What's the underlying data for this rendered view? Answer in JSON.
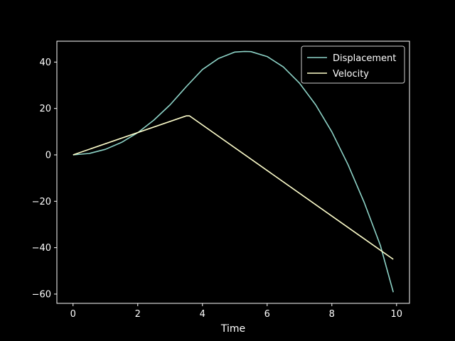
{
  "chart_data": {
    "type": "line",
    "title": "",
    "xlabel": "Time",
    "ylabel": "",
    "xlim": [
      -0.5,
      10.4
    ],
    "ylim": [
      -64,
      49
    ],
    "xticks": [
      0,
      2,
      4,
      6,
      8,
      10
    ],
    "yticks": [
      -60,
      -40,
      -20,
      0,
      20,
      40
    ],
    "xtick_labels": [
      "0",
      "2",
      "4",
      "6",
      "8",
      "10"
    ],
    "ytick_labels": [
      "−60",
      "−40",
      "−20",
      "0",
      "20",
      "40"
    ],
    "grid": false,
    "legend": "top-right",
    "background": "#000000",
    "foreground": "#ffffff",
    "series": [
      {
        "name": "Displacement",
        "color": "#8dd3c7",
        "x": [
          0,
          0.5,
          1,
          1.5,
          2,
          2.5,
          3,
          3.5,
          4,
          4.5,
          5,
          5.3,
          5.5,
          6,
          6.5,
          7,
          7.5,
          8,
          8.5,
          9,
          9.5,
          9.9
        ],
        "y": [
          0,
          0.6,
          2.4,
          5.4,
          9.6,
          15.0,
          21.6,
          29.4,
          36.8,
          41.6,
          44.3,
          44.6,
          44.5,
          42.4,
          37.9,
          30.9,
          21.6,
          9.9,
          -4.2,
          -20.5,
          -39.0,
          -59.2
        ]
      },
      {
        "name": "Velocity",
        "color": "#ffffcc",
        "x": [
          0,
          3.5,
          3.6,
          9.9
        ],
        "y": [
          0,
          16.8,
          16.8,
          -45.0
        ]
      }
    ]
  }
}
